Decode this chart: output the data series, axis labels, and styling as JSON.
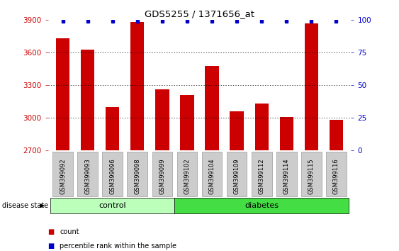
{
  "title": "GDS5255 / 1371656_at",
  "samples": [
    "GSM399092",
    "GSM399093",
    "GSM399096",
    "GSM399098",
    "GSM399099",
    "GSM399102",
    "GSM399104",
    "GSM399109",
    "GSM399112",
    "GSM399114",
    "GSM399115",
    "GSM399116"
  ],
  "counts": [
    3730,
    3630,
    3100,
    3880,
    3260,
    3210,
    3480,
    3060,
    3130,
    3010,
    3870,
    2980
  ],
  "percentile_ranks": [
    99,
    99,
    99,
    99,
    99,
    99,
    99,
    99,
    99,
    99,
    99,
    99
  ],
  "bar_color": "#cc0000",
  "dot_color": "#0000cc",
  "ylim_left": [
    2700,
    3900
  ],
  "ylim_right": [
    0,
    100
  ],
  "yticks_left": [
    2700,
    3000,
    3300,
    3600,
    3900
  ],
  "yticks_right": [
    0,
    25,
    50,
    75,
    100
  ],
  "control_group_count": 5,
  "diabetes_group_count": 7,
  "control_label": "control",
  "diabetes_label": "diabetes",
  "disease_state_label": "disease state",
  "legend_count_label": "count",
  "legend_percentile_label": "percentile rank within the sample",
  "control_color": "#bbffbb",
  "diabetes_color": "#44dd44",
  "tick_label_bg": "#cccccc",
  "background_color": "#ffffff",
  "grid_color": "#000000",
  "left_axis_color": "#cc0000",
  "right_axis_color": "#0000cc",
  "bar_width": 0.55
}
